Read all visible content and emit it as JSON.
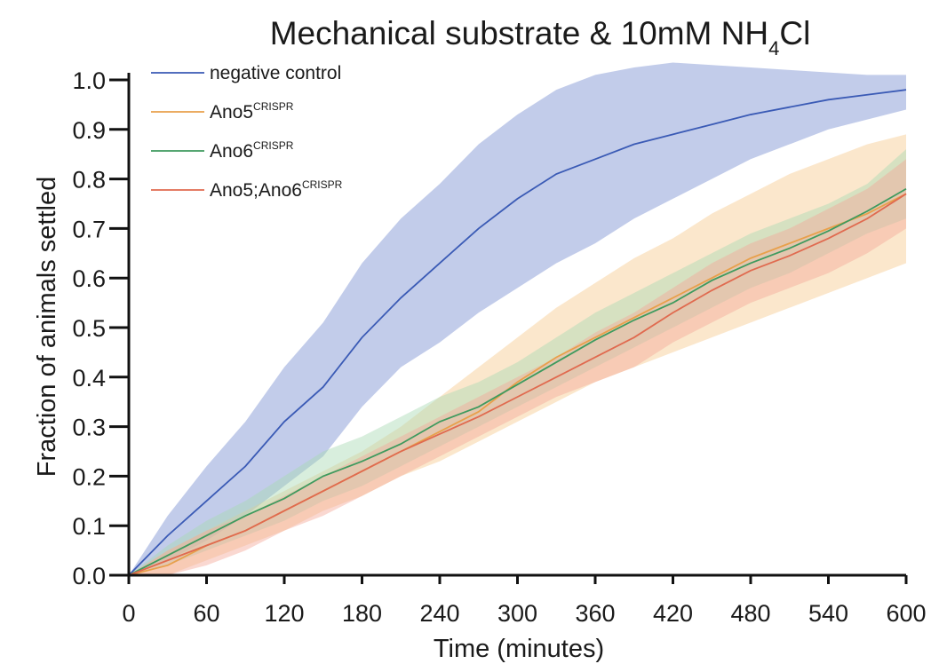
{
  "chart_data": {
    "type": "line",
    "title": {
      "main": "Mechanical substrate & 10mM NH",
      "subscript": "4",
      "suffix": "Cl"
    },
    "xlabel": "Time (minutes)",
    "ylabel": "Fraction of animals settled",
    "xlim": [
      0,
      600
    ],
    "ylim": [
      0,
      1.0
    ],
    "x_ticks": [
      "0",
      "60",
      "120",
      "180",
      "240",
      "300",
      "360",
      "420",
      "480",
      "540",
      "600"
    ],
    "y_ticks": [
      "0.0",
      "0.1",
      "0.2",
      "0.3",
      "0.4",
      "0.5",
      "0.6",
      "0.7",
      "0.8",
      "0.9",
      "1.0"
    ],
    "grid": false,
    "legend_position": "top-left",
    "x": [
      0,
      30,
      60,
      90,
      120,
      150,
      180,
      210,
      240,
      270,
      300,
      330,
      360,
      390,
      420,
      450,
      480,
      510,
      540,
      570,
      600
    ],
    "series": [
      {
        "name": "negative control",
        "name_sup": "",
        "color": "#3a5ab5",
        "band_color": "#8fa3d8",
        "values": [
          0.0,
          0.08,
          0.15,
          0.22,
          0.31,
          0.38,
          0.48,
          0.56,
          0.63,
          0.7,
          0.76,
          0.81,
          0.84,
          0.87,
          0.89,
          0.91,
          0.93,
          0.945,
          0.96,
          0.97,
          0.98
        ],
        "lower": [
          0.0,
          0.03,
          0.07,
          0.12,
          0.18,
          0.24,
          0.34,
          0.42,
          0.47,
          0.53,
          0.58,
          0.63,
          0.67,
          0.72,
          0.76,
          0.8,
          0.84,
          0.87,
          0.9,
          0.92,
          0.94
        ],
        "upper": [
          0.0,
          0.12,
          0.22,
          0.31,
          0.42,
          0.51,
          0.63,
          0.72,
          0.79,
          0.87,
          0.93,
          0.98,
          1.01,
          1.025,
          1.035,
          1.03,
          1.025,
          1.02,
          1.015,
          1.01,
          1.01
        ]
      },
      {
        "name": "Ano5",
        "name_sup": "CRISPR",
        "color": "#e8a04b",
        "band_color": "#f7c98f",
        "values": [
          0.0,
          0.02,
          0.06,
          0.09,
          0.13,
          0.17,
          0.21,
          0.25,
          0.29,
          0.33,
          0.39,
          0.44,
          0.48,
          0.52,
          0.56,
          0.6,
          0.64,
          0.67,
          0.7,
          0.73,
          0.77
        ],
        "lower": [
          0.0,
          0.0,
          0.03,
          0.06,
          0.09,
          0.13,
          0.16,
          0.2,
          0.23,
          0.27,
          0.31,
          0.35,
          0.39,
          0.42,
          0.45,
          0.48,
          0.51,
          0.54,
          0.57,
          0.6,
          0.63
        ],
        "upper": [
          0.0,
          0.05,
          0.09,
          0.13,
          0.17,
          0.21,
          0.25,
          0.3,
          0.36,
          0.42,
          0.48,
          0.54,
          0.59,
          0.64,
          0.68,
          0.73,
          0.77,
          0.81,
          0.84,
          0.87,
          0.89
        ]
      },
      {
        "name": "Ano6",
        "name_sup": "CRISPR",
        "color": "#3e9a5e",
        "band_color": "#a8d9b4",
        "values": [
          0.0,
          0.04,
          0.08,
          0.12,
          0.155,
          0.2,
          0.23,
          0.265,
          0.31,
          0.34,
          0.385,
          0.43,
          0.475,
          0.515,
          0.55,
          0.595,
          0.63,
          0.66,
          0.695,
          0.735,
          0.78
        ],
        "lower": [
          0.0,
          0.02,
          0.05,
          0.08,
          0.11,
          0.15,
          0.18,
          0.22,
          0.26,
          0.3,
          0.34,
          0.38,
          0.42,
          0.46,
          0.5,
          0.54,
          0.58,
          0.61,
          0.65,
          0.69,
          0.72
        ],
        "upper": [
          0.0,
          0.06,
          0.11,
          0.15,
          0.2,
          0.25,
          0.28,
          0.32,
          0.36,
          0.39,
          0.43,
          0.48,
          0.53,
          0.57,
          0.61,
          0.65,
          0.69,
          0.72,
          0.75,
          0.79,
          0.86
        ]
      },
      {
        "name": "Ano5;Ano6",
        "name_sup": "CRISPR",
        "color": "#e06a4f",
        "band_color": "#f4a89a",
        "values": [
          0.0,
          0.03,
          0.06,
          0.09,
          0.13,
          0.17,
          0.21,
          0.25,
          0.285,
          0.32,
          0.36,
          0.4,
          0.44,
          0.48,
          0.53,
          0.575,
          0.615,
          0.645,
          0.68,
          0.72,
          0.77
        ],
        "lower": [
          0.0,
          0.0,
          0.02,
          0.05,
          0.09,
          0.12,
          0.16,
          0.2,
          0.24,
          0.28,
          0.32,
          0.36,
          0.39,
          0.42,
          0.47,
          0.51,
          0.55,
          0.58,
          0.61,
          0.65,
          0.7
        ],
        "upper": [
          0.0,
          0.05,
          0.09,
          0.12,
          0.16,
          0.2,
          0.24,
          0.28,
          0.32,
          0.36,
          0.4,
          0.44,
          0.49,
          0.53,
          0.58,
          0.63,
          0.67,
          0.7,
          0.74,
          0.78,
          0.84
        ]
      }
    ]
  }
}
